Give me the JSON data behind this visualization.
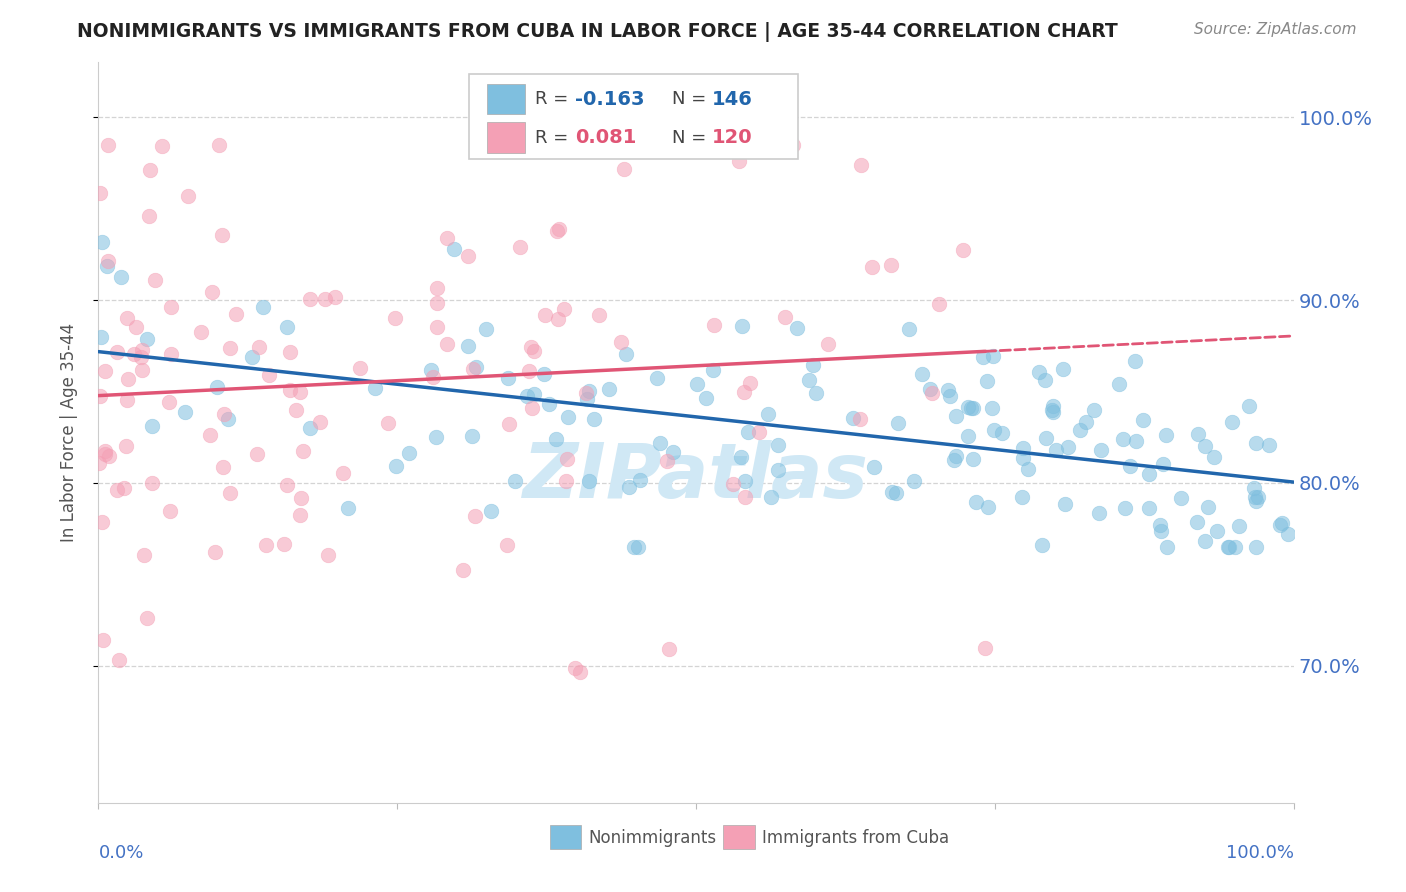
{
  "title": "NONIMMIGRANTS VS IMMIGRANTS FROM CUBA IN LABOR FORCE | AGE 35-44 CORRELATION CHART",
  "source": "Source: ZipAtlas.com",
  "ylabel": "In Labor Force | Age 35-44",
  "yticks": [
    0.7,
    0.8,
    0.9,
    1.0
  ],
  "ytick_labels": [
    "70.0%",
    "80.0%",
    "90.0%",
    "100.0%"
  ],
  "xlim": [
    0.0,
    1.0
  ],
  "ylim": [
    0.625,
    1.03
  ],
  "nonimm_R": -0.163,
  "nonimm_N": 146,
  "imm_R": 0.081,
  "imm_N": 120,
  "blue_color": "#7fbfdf",
  "blue_line_color": "#2166ac",
  "pink_color": "#f4a0b5",
  "pink_line_color": "#e05575",
  "watermark_color": "#d0e8f5",
  "background_color": "#ffffff",
  "grid_color": "#d0d0d0",
  "title_color": "#222222",
  "axis_label_color": "#4472C4",
  "legend_label1": "Nonimmigrants",
  "legend_label2": "Immigrants from Cuba"
}
